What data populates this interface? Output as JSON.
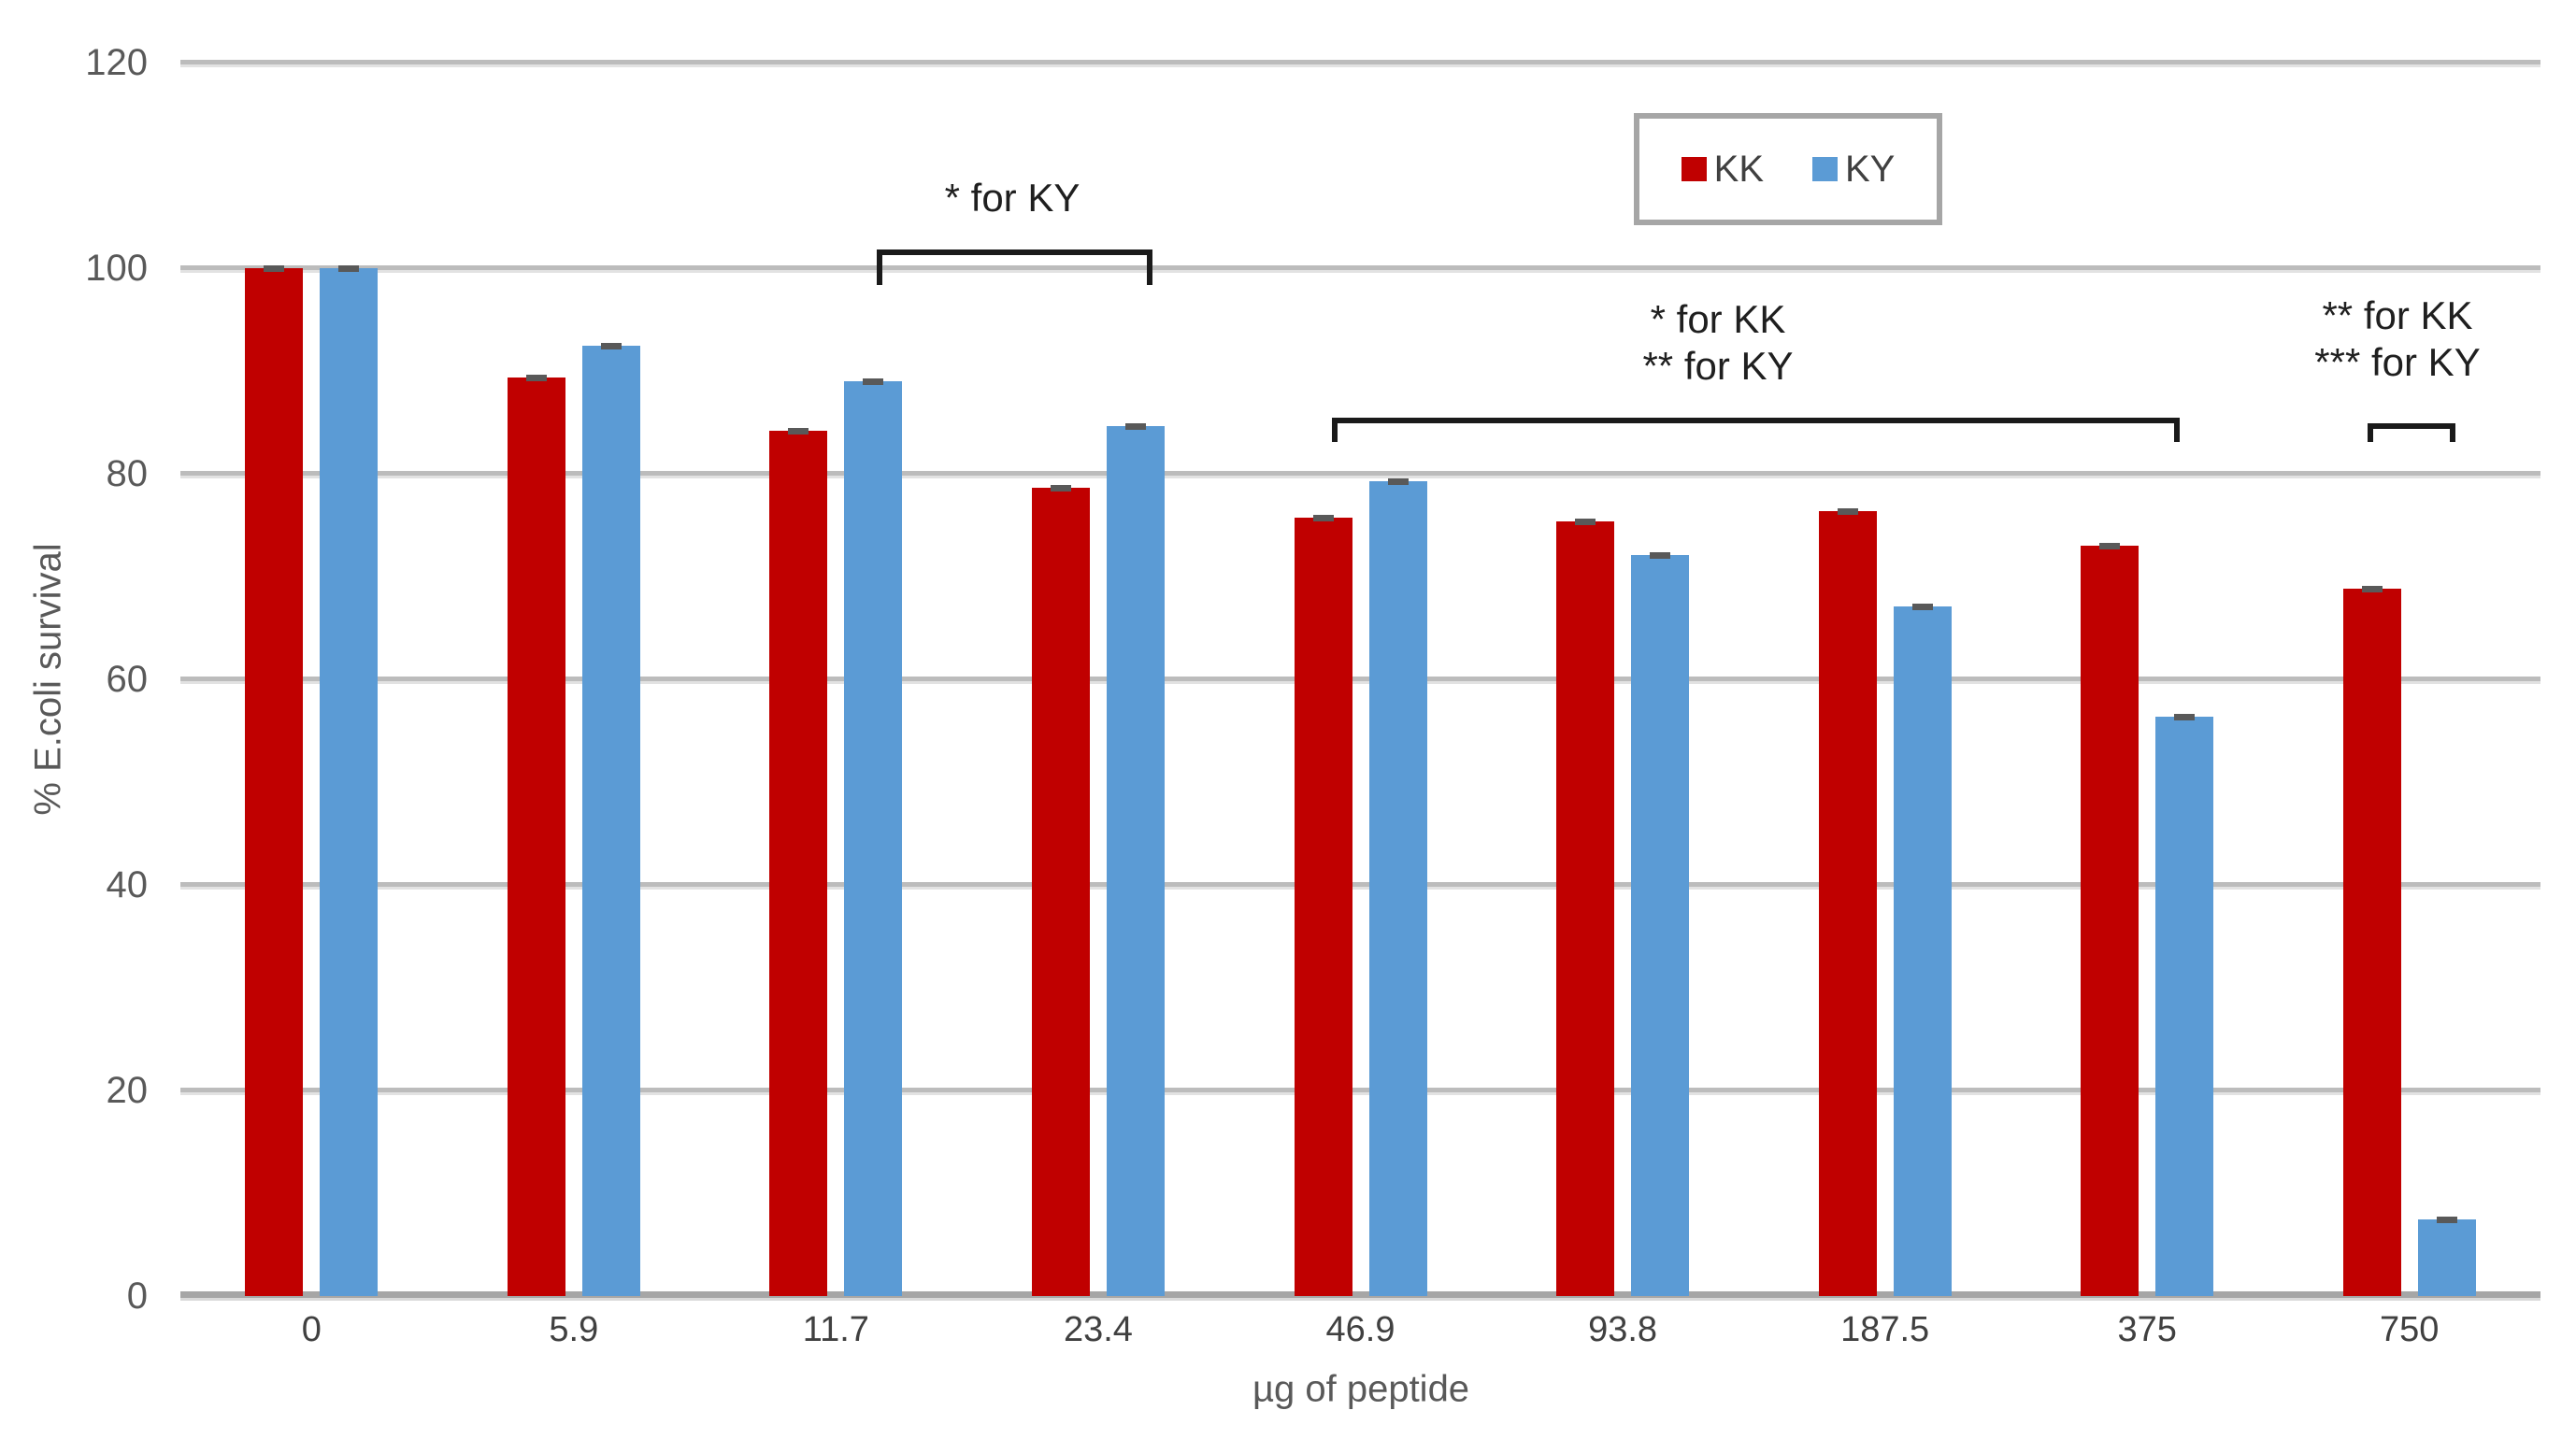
{
  "chart_data": {
    "type": "bar",
    "title": "",
    "xlabel": "µg of peptide",
    "ylabel": "% E.coli survival",
    "categories": [
      "0",
      "5.9",
      "11.7",
      "23.4",
      "46.9",
      "93.8",
      "187.5",
      "375",
      "750"
    ],
    "series": [
      {
        "name": "KK",
        "color": "#C00000",
        "values": [
          100,
          89.4,
          84.2,
          78.6,
          75.7,
          75.4,
          76.4,
          73.0,
          68.8
        ]
      },
      {
        "name": "KY",
        "color": "#5B9BD5",
        "values": [
          100,
          92.5,
          89.0,
          84.6,
          79.3,
          72.1,
          67.1,
          56.4,
          7.5
        ]
      }
    ],
    "ylim": [
      0,
      120
    ],
    "ytick_step": 20,
    "y_ticks": [
      "0",
      "20",
      "40",
      "60",
      "80",
      "100",
      "120"
    ],
    "grid": true,
    "error_caps": true,
    "legend_position": "top-right-inside",
    "annotations": [
      {
        "text_lines": [
          "* for KY"
        ],
        "spans_categories": [
          "11.7",
          "23.4"
        ]
      },
      {
        "text_lines": [
          "* for KK",
          "** for KY"
        ],
        "spans_categories": [
          "46.9",
          "375"
        ]
      },
      {
        "text_lines": [
          "** for KK",
          "*** for KY"
        ],
        "spans_categories": [
          "750"
        ]
      }
    ]
  },
  "colors": {
    "gridline": "#BCBCBC",
    "zero_axis": "#A6A6A6",
    "tick_text": "#595959",
    "x_tick_text": "#404040",
    "axis_title_text": "#595959",
    "annotation_text": "#1F1F1F",
    "error_cap": "#595959",
    "legend_border": "#A6A6A6"
  }
}
